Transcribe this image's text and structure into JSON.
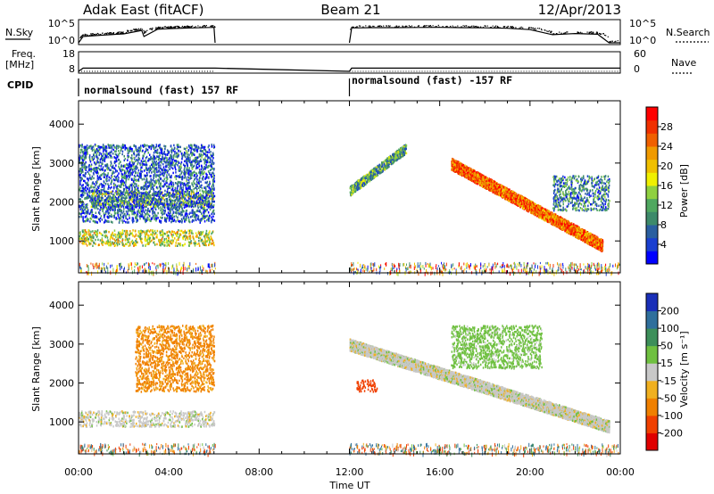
{
  "header": {
    "title_left": "Adak East (fitACF)",
    "title_center": "Beam 21",
    "title_right": "12/Apr/2013"
  },
  "params": {
    "nsky_label": "N.Sky",
    "nsky_ticks": [
      "10^5",
      "10^0"
    ],
    "nsearch_label": "N.Search",
    "nsearch_ticks": [
      "10^5",
      "10^0"
    ],
    "freq_label_1": "Freq.",
    "freq_label_2": "[MHz]",
    "freq_ticks": [
      "18",
      "8"
    ],
    "nave_label": "Nave",
    "nave_ticks": [
      "60",
      "0"
    ],
    "cpid_label": "CPID",
    "cpid_segments": [
      {
        "text": "normalsound (fast) 157 RF",
        "start_hour": 0,
        "end_hour": 6.05
      },
      {
        "text": "normalsound (fast) -157 RF",
        "start_hour": 12,
        "end_hour": 24
      }
    ]
  },
  "axes": {
    "y_label": "Slant Range [km]",
    "x_label": "Time UT",
    "x_ticks": [
      "00:00",
      "04:00",
      "08:00",
      "12:00",
      "16:00",
      "20:00",
      "00:00"
    ],
    "y_ticks": [
      "1000",
      "2000",
      "3000",
      "4000"
    ]
  },
  "colorbars": {
    "power": {
      "label": "Power [dB]",
      "ticks": [
        "4",
        "8",
        "12",
        "16",
        "20",
        "24",
        "28"
      ],
      "colors": [
        "#0000ff",
        "#1a3fd0",
        "#2a5fa0",
        "#3d8a6a",
        "#50a860",
        "#8fd040",
        "#f0f000",
        "#f0c000",
        "#f09a00",
        "#f06000",
        "#f03000",
        "#ff0000"
      ]
    },
    "velocity": {
      "label": "Velocity [m s⁻¹]",
      "ticks": [
        "200",
        "100",
        "50",
        "15",
        "-15",
        "-50",
        "-100",
        "-200"
      ],
      "colors": [
        "#1a2fb8",
        "#2f6f9c",
        "#3d8f5a",
        "#6fc040",
        "#c8c8c8",
        "#f0b020",
        "#f08000",
        "#f04000",
        "#e00000"
      ]
    }
  },
  "chart_data": [
    {
      "type": "line",
      "title": "N.Sky / N.Search",
      "x_unit": "hour UT",
      "xlim": [
        0,
        24
      ],
      "y_scale": "log",
      "ylim": [
        1,
        100000
      ],
      "series": [
        {
          "name": "N.Sky",
          "x": [
            0,
            0.2,
            1,
            2,
            2.8,
            2.9,
            3.5,
            4,
            5,
            6,
            6.05
          ],
          "y": [
            1,
            30,
            60,
            120,
            800,
            30,
            1500,
            2000,
            3000,
            4000,
            1
          ],
          "gaps_hours": [
            [
              6.05,
              12
            ]
          ]
        },
        {
          "name": "N.Search",
          "x": [
            12,
            12.1,
            13,
            14,
            15,
            16,
            17,
            18,
            19,
            20,
            21,
            22,
            23,
            23.5,
            24
          ],
          "y": [
            1,
            3000,
            3500,
            3500,
            3800,
            4000,
            3500,
            3200,
            2500,
            1200,
            80,
            150,
            100,
            1,
            1
          ]
        }
      ]
    },
    {
      "type": "line",
      "title": "Freq. / Nave",
      "x_unit": "hour UT",
      "xlim": [
        0,
        24
      ],
      "series": [
        {
          "name": "Freq.",
          "x": [
            0,
            0.2,
            6.05,
            12,
            12.1,
            24
          ],
          "y": [
            8,
            10,
            10,
            8,
            10,
            10
          ],
          "ylim": [
            8,
            18
          ]
        },
        {
          "name": "Nave",
          "x": [
            0,
            6.05,
            12,
            24
          ],
          "y": [
            0,
            0,
            0,
            0
          ],
          "ylim": [
            0,
            60
          ]
        }
      ]
    },
    {
      "type": "heatmap",
      "title": "Power",
      "x_label": "Time UT",
      "y_label": "Slant Range [km]",
      "xlim": [
        0,
        24
      ],
      "ylim": [
        180,
        4600
      ],
      "value_label": "Power [dB]",
      "value_range": [
        0,
        30
      ],
      "data_gaps_hours": [
        [
          6.05,
          12
        ]
      ],
      "features": [
        {
          "name": "near-range ionosphere band",
          "t_start": 0,
          "t_end": 6,
          "range_km": [
            900,
            1300
          ],
          "power_db": 16
        },
        {
          "name": "E-region band",
          "t_start": 0.5,
          "t_end": 6,
          "range_km": [
            1900,
            2300
          ],
          "power_db": 14
        },
        {
          "name": "morning scatter",
          "t_start": 0,
          "t_end": 6,
          "range_km": [
            1500,
            3500
          ],
          "power_db": 6
        },
        {
          "name": "descending echo band",
          "t_start": 16.5,
          "t_end": 23.2,
          "range_km": [
            900,
            3000
          ],
          "power_db": 24
        },
        {
          "name": "ascending arc",
          "t_start": 12,
          "t_end": 14.5,
          "range_km": [
            2300,
            3400
          ],
          "power_db": 10
        },
        {
          "name": "late scatter",
          "t_start": 21,
          "t_end": 23.5,
          "range_km": [
            1800,
            2700
          ],
          "power_db": 8
        }
      ]
    },
    {
      "type": "heatmap",
      "title": "Velocity",
      "x_label": "Time UT",
      "y_label": "Slant Range [km]",
      "xlim": [
        0,
        24
      ],
      "ylim": [
        180,
        4600
      ],
      "value_label": "Velocity [m s⁻¹]",
      "value_range": [
        -200,
        200
      ],
      "data_gaps_hours": [
        [
          6.05,
          12
        ]
      ],
      "features": [
        {
          "name": "ground scatter band",
          "t_start": 0,
          "t_end": 6,
          "range_km": [
            900,
            1300
          ],
          "velocity": 0
        },
        {
          "name": "negative velocity scatter",
          "t_start": 2.5,
          "t_end": 6,
          "range_km": [
            1800,
            3500
          ],
          "velocity": -60
        },
        {
          "name": "ground scatter descending",
          "t_start": 12,
          "t_end": 23.5,
          "range_km": [
            900,
            3000
          ],
          "velocity": 0
        },
        {
          "name": "positive velocity echo",
          "t_start": 16.5,
          "t_end": 20.5,
          "range_km": [
            2400,
            3500
          ],
          "velocity": 30
        },
        {
          "name": "strong negative feature",
          "t_start": 12.3,
          "t_end": 13.2,
          "range_km": [
            1800,
            2100
          ],
          "velocity": -120
        }
      ]
    }
  ]
}
